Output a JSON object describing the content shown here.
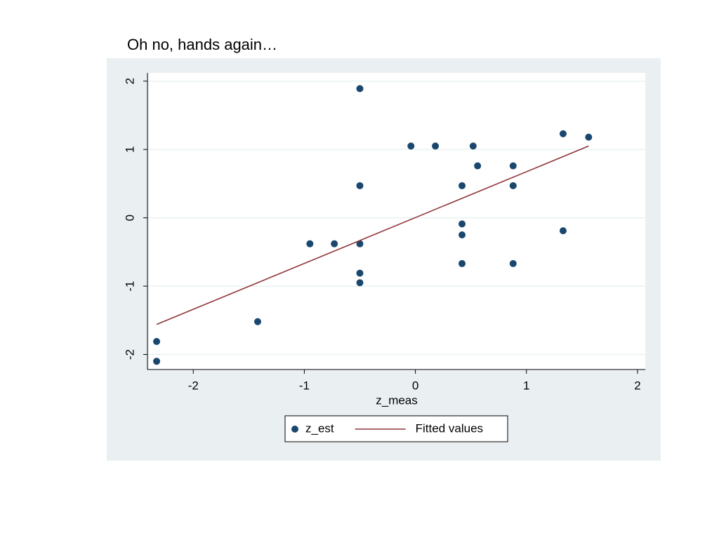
{
  "chart_data": {
    "type": "scatter",
    "title": "Oh no, hands again…",
    "x_label": "z_meas",
    "xlim": [
      -2.4,
      2.07
    ],
    "ylim": [
      -2.22,
      2.12
    ],
    "xticks": [
      -2,
      -1,
      0,
      1,
      2
    ],
    "yticks": [
      -2,
      -1,
      0,
      1,
      2
    ],
    "grid": true,
    "legend": "bottom",
    "series": [
      {
        "name": "z_est",
        "type": "scatter",
        "color": "#1a476f",
        "x": [
          -0.5,
          -0.04,
          0.18,
          0.52,
          1.33,
          1.56,
          0.56,
          0.88,
          0.42,
          0.88,
          -0.5,
          0.42,
          0.42,
          1.33,
          -0.95,
          -0.73,
          -0.5,
          0.42,
          0.88,
          -0.5,
          -0.5,
          -1.42,
          -2.33,
          -2.33
        ],
        "values": [
          1.89,
          1.05,
          1.05,
          1.05,
          1.23,
          1.18,
          0.76,
          0.76,
          0.47,
          0.47,
          0.47,
          -0.09,
          -0.25,
          -0.19,
          -0.38,
          -0.38,
          -0.38,
          -0.67,
          -0.67,
          -0.81,
          -0.95,
          -1.52,
          -1.81,
          -2.1
        ]
      },
      {
        "name": "Fitted values",
        "type": "line",
        "color": "#90353b",
        "x": [
          -2.33,
          1.56
        ],
        "values": [
          -1.56,
          1.05
        ]
      }
    ]
  }
}
